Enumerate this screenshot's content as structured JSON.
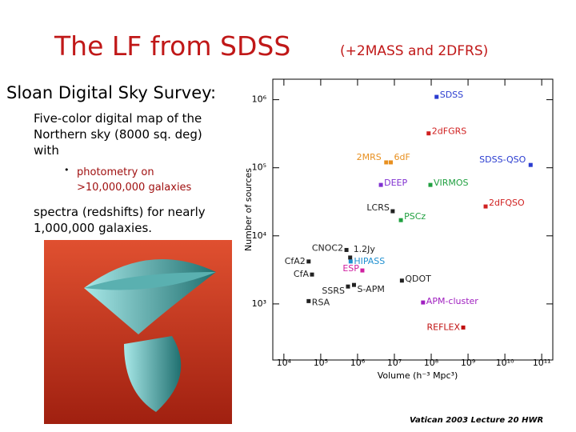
{
  "slide": {
    "title": "The LF from SDSS",
    "title_note": "(+2MASS and 2DFRS)",
    "heading": "Sloan Digital Sky Survey:",
    "paragraph1": "Five-color digital map of the Northern sky (8000 sq. deg) with",
    "bullet": "photometry on >10,000,000 galaxies",
    "paragraph2": "spectra (redshifts) for nearly 1,000,000 galaxies.",
    "footer": "Vatican 2003 Lecture 20 HWR"
  },
  "chart_data": {
    "type": "scatter",
    "xlabel": "Volume (h⁻³ Mpc³)",
    "ylabel": "Number of sources",
    "xscale": "log",
    "yscale": "log",
    "xlim": [
      5000,
      200000000000
    ],
    "ylim": [
      150,
      2000000
    ],
    "xticks": [
      {
        "value": 10000,
        "label": "10⁴"
      },
      {
        "value": 100000,
        "label": "10⁵"
      },
      {
        "value": 1000000,
        "label": "10⁶"
      },
      {
        "value": 10000000,
        "label": "10⁷"
      },
      {
        "value": 100000000,
        "label": "10⁸"
      },
      {
        "value": 1000000000,
        "label": "10⁹"
      },
      {
        "value": 10000000000,
        "label": "10¹⁰"
      },
      {
        "value": 100000000000,
        "label": "10¹¹"
      }
    ],
    "yticks": [
      {
        "value": 1000,
        "label": "10³"
      },
      {
        "value": 10000,
        "label": "10⁴"
      },
      {
        "value": 100000,
        "label": "10⁵"
      },
      {
        "value": 1000000,
        "label": "10⁶"
      }
    ],
    "labels": [
      "SDSS",
      "2dFGRS",
      "2MRS",
      "6dF",
      "SDSS-QSO",
      "DEEP",
      "VIRMOS",
      "2dFQSO",
      "LCRS",
      "PSCz",
      "CNOC2",
      "1.2Jy",
      "CfA2",
      "HIPASS",
      "ESP",
      "CfA",
      "QDOT",
      "SSRS",
      "S-APM",
      "RSA",
      "APM-cluster",
      "REFLEX"
    ],
    "x": [
      140000000,
      85000000,
      6000000,
      8000000,
      50000000000,
      4300000,
      95000000,
      3000000000,
      9000000,
      15000000,
      500000,
      630000,
      47000,
      650000,
      1350000,
      58000,
      16000000,
      550000,
      800000,
      47000,
      60000000,
      740000000
    ],
    "values": [
      1100000,
      320000,
      120000,
      120000,
      110000,
      56000,
      56000,
      27000,
      23000,
      17000,
      6200,
      4800,
      4200,
      4200,
      3100,
      2700,
      2200,
      1800,
      1900,
      1100,
      1050,
      450
    ],
    "colors": [
      "#2a3cd0",
      "#d02020",
      "#e89020",
      "#e89020",
      "#2a3cd0",
      "#8030d0",
      "#20a040",
      "#d02020",
      "#222222",
      "#20a040",
      "#222222",
      "#222222",
      "#222222",
      "#2090d0",
      "#d020a0",
      "#222222",
      "#222222",
      "#222222",
      "#222222",
      "#222222",
      "#a020c0",
      "#c01010"
    ]
  }
}
